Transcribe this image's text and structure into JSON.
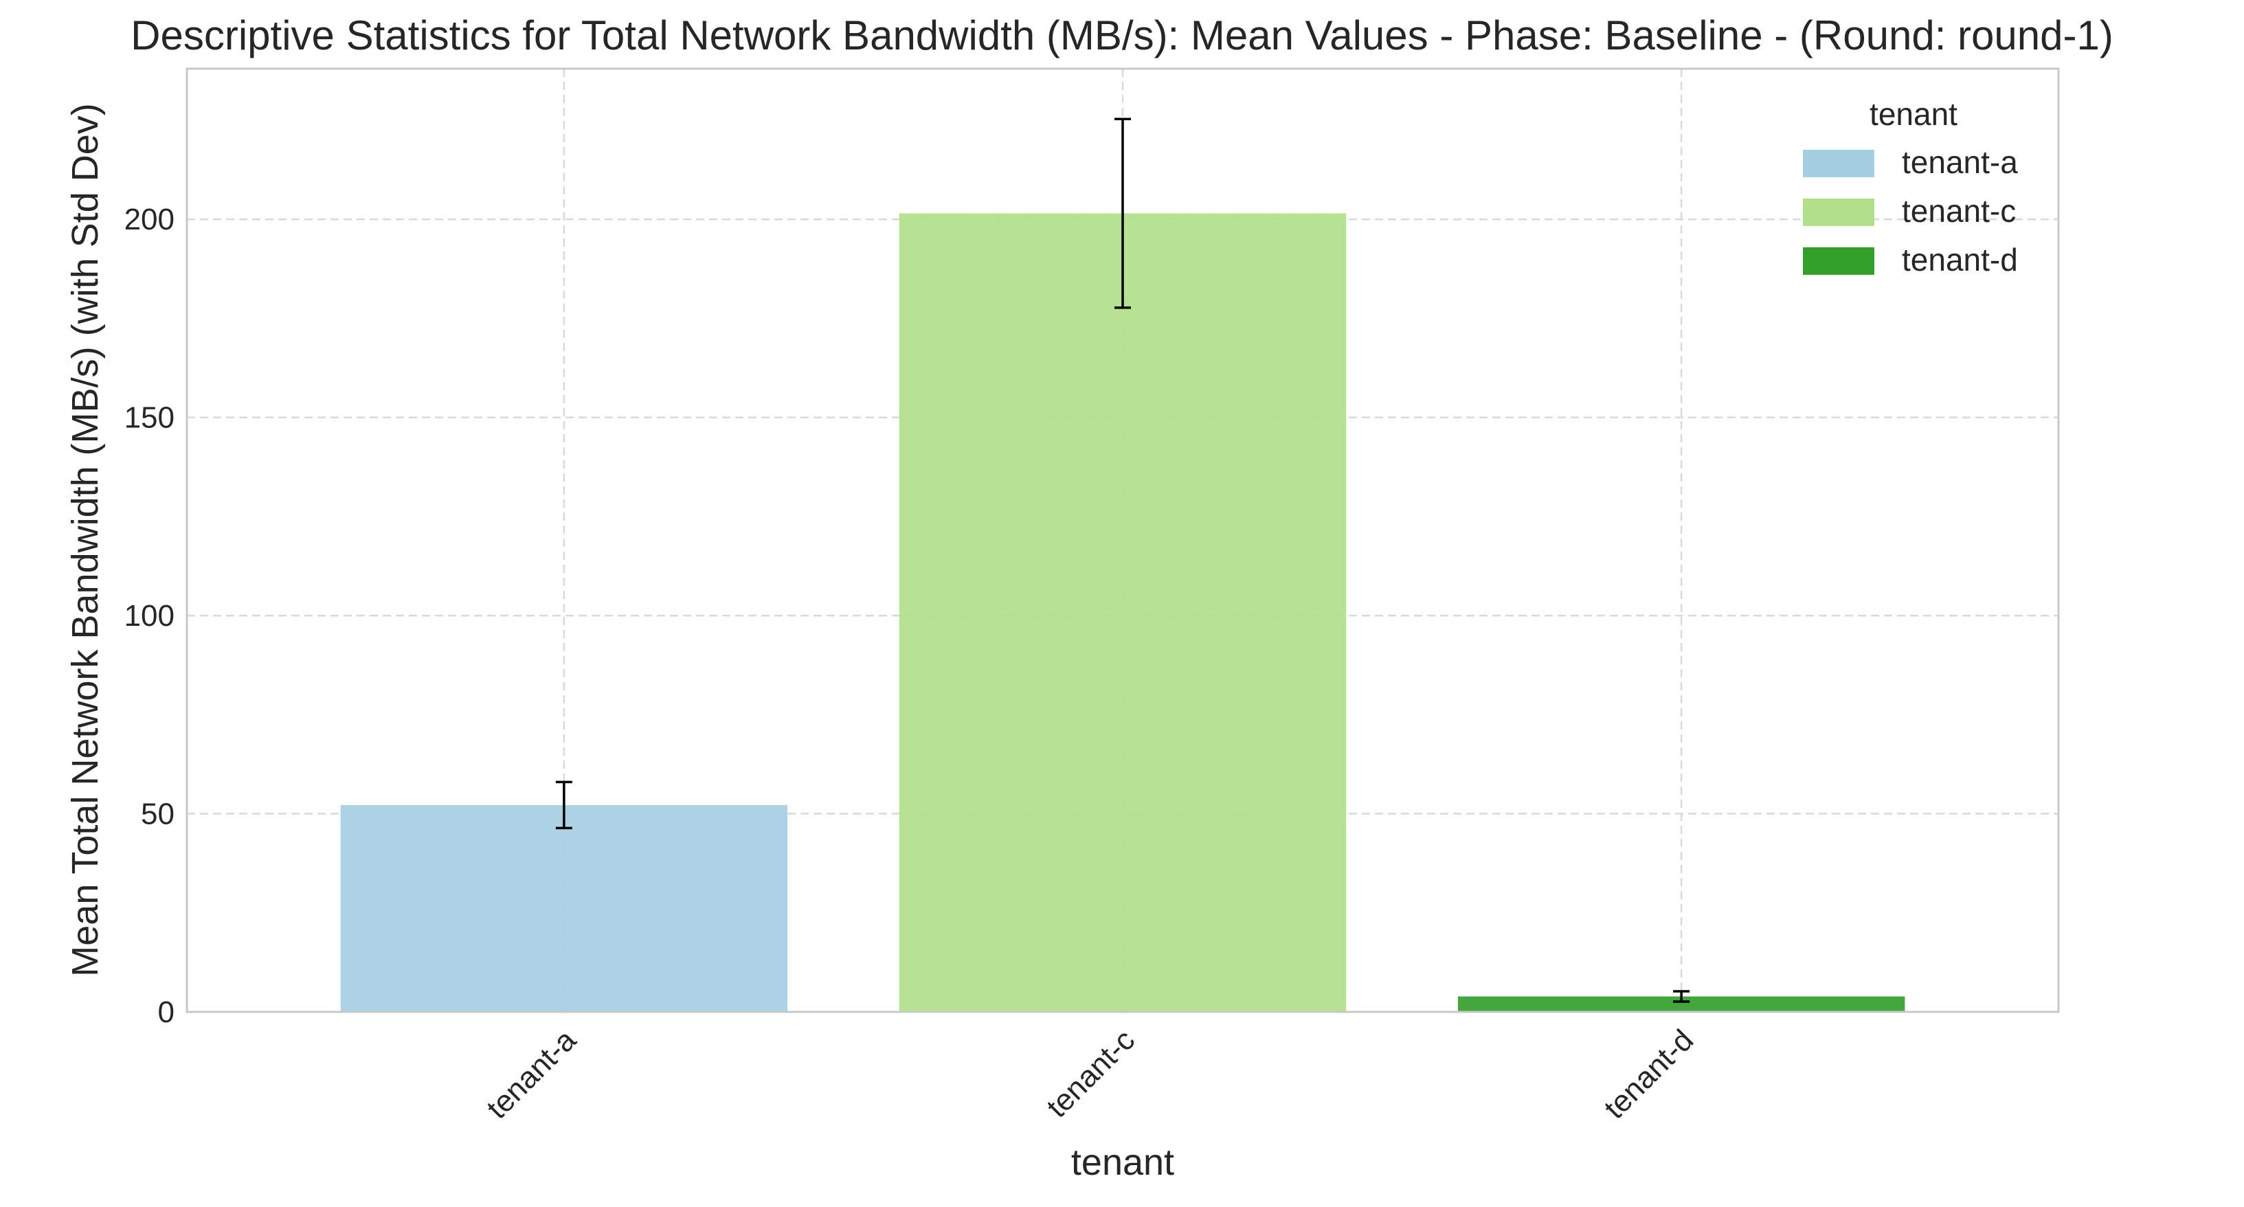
{
  "chart_data": {
    "type": "bar",
    "title": "Descriptive Statistics for Total Network Bandwidth (MB/s): Mean Values - Phase: Baseline - (Round: round-1)",
    "xlabel": "tenant",
    "ylabel": "Mean Total Network Bandwidth (MB/s) (with Std Dev)",
    "categories": [
      "tenant-a",
      "tenant-c",
      "tenant-d"
    ],
    "values": [
      52.2,
      201.5,
      3.9
    ],
    "std_dev": [
      5.8,
      23.8,
      1.3
    ],
    "colors": [
      "#a6cee3",
      "#b2df8a",
      "#33a02c"
    ],
    "ylim": [
      0,
      238
    ],
    "yticks": [
      0,
      50,
      100,
      150,
      200
    ],
    "grid": true,
    "legend": {
      "title": "tenant",
      "placement": "top-right",
      "entries": [
        "tenant-a",
        "tenant-c",
        "tenant-d"
      ]
    }
  }
}
